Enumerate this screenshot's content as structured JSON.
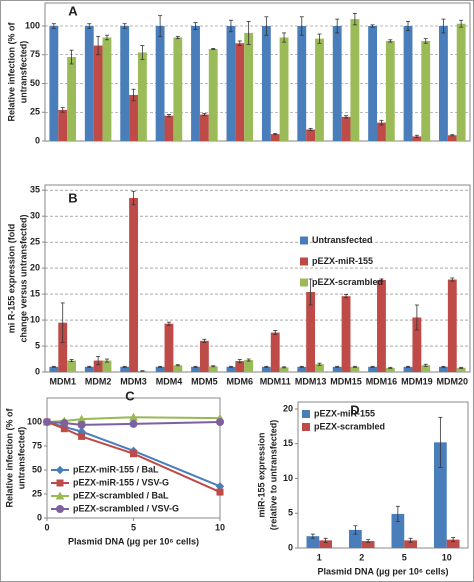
{
  "chart_data": [
    {
      "type": "bar",
      "label": "A",
      "ylabel": [
        "Relative infection (% of",
        "untransfected)"
      ],
      "categories": [
        null,
        null,
        null,
        null,
        null,
        null,
        null,
        null,
        null,
        null,
        null,
        null
      ],
      "series": [
        {
          "name": "Untransfected",
          "color": "#4a7ebb",
          "values": [
            100,
            100,
            100,
            100,
            100,
            100,
            100,
            100,
            100,
            100,
            100,
            100
          ],
          "errors": [
            2,
            2,
            2,
            9,
            3,
            5,
            8,
            8,
            6,
            1,
            4,
            6
          ]
        },
        {
          "name": "pEZX-miR-155",
          "color": "#be4b48",
          "values": [
            27,
            83,
            40,
            22,
            23,
            85,
            6,
            10,
            21,
            16,
            4,
            5
          ],
          "errors": [
            2,
            8,
            5,
            1,
            1,
            2,
            0.5,
            1,
            1,
            2,
            1,
            0.5
          ]
        },
        {
          "name": "pEZX-scrambled",
          "color": "#9bbb59",
          "values": [
            73,
            90,
            77,
            90,
            80,
            94,
            90,
            89,
            106,
            87,
            87,
            102
          ],
          "errors": [
            6,
            2,
            6,
            1,
            0.5,
            10,
            4,
            4,
            5,
            1,
            2,
            3
          ]
        }
      ],
      "ylim": [
        0,
        120
      ],
      "yticks": [
        0,
        25,
        50,
        75,
        100
      ],
      "grid": true
    },
    {
      "type": "bar",
      "label": "B",
      "ylabel": [
        "mi R-155 expression (fold",
        "change versus untransfected)"
      ],
      "categories": [
        "MDM1",
        "MDM2",
        "MDM3",
        "MDM4",
        "MDM5",
        "MDM6",
        "MDM11",
        "MDM13",
        "MDM15",
        "MDM16",
        "MDM19",
        "MDM20"
      ],
      "series": [
        {
          "name": "Untransfected",
          "color": "#4a7ebb",
          "values": [
            1,
            1,
            1,
            1,
            1,
            1,
            1,
            1,
            1,
            1,
            1,
            1
          ],
          "errors": [
            0.1,
            0.1,
            0.1,
            0.1,
            0.1,
            0.1,
            0.1,
            0.1,
            0.1,
            0.1,
            0.1,
            0.1
          ]
        },
        {
          "name": "pEZX-miR-155",
          "color": "#be4b48",
          "values": [
            9.5,
            2.2,
            33.5,
            9.3,
            6,
            2.1,
            7.6,
            15.4,
            14.6,
            17.7,
            10.5,
            17.8
          ],
          "errors": [
            3.8,
            0.8,
            1.3,
            0.3,
            0.3,
            0.3,
            0.4,
            2.5,
            0.3,
            0.2,
            2.4,
            0.3
          ]
        },
        {
          "name": "pEZX-scrambled",
          "color": "#9bbb59",
          "values": [
            2.2,
            2.2,
            0.2,
            1.3,
            1.1,
            2.3,
            0.9,
            1.5,
            1.0,
            0.8,
            1.3,
            0.8
          ],
          "errors": [
            0.2,
            0.3,
            0.05,
            0.1,
            0.1,
            0.2,
            0.1,
            0.2,
            0.1,
            0.1,
            0.2,
            0.1
          ]
        }
      ],
      "ylim": [
        0,
        36
      ],
      "yticks": [
        0,
        5,
        10,
        15,
        20,
        25,
        30,
        35
      ],
      "grid": true,
      "legend": "center right"
    },
    {
      "type": "line",
      "label": "C",
      "ylabel": [
        "Relative infection (% of",
        "untransfected)"
      ],
      "xlabel": "Plasmid DNA (µg per 10⁶ cells)",
      "x": [
        0,
        1,
        2,
        5,
        10
      ],
      "series": [
        {
          "name": "pEZX-miR-155 / BaL",
          "color": "#4a7ebb",
          "marker": "diamond",
          "values": [
            100,
            95,
            90,
            70,
            33
          ]
        },
        {
          "name": "pEZX-miR-155 / VSV-G",
          "color": "#be4b48",
          "marker": "square",
          "values": [
            100,
            93,
            85,
            67,
            27
          ]
        },
        {
          "name": "pEZX-scrambled / BaL",
          "color": "#98b954",
          "marker": "triangle",
          "values": [
            100,
            101,
            103,
            105,
            104
          ]
        },
        {
          "name": "pEZX-scrambled / VSV-G",
          "color": "#7d60a0",
          "marker": "circle",
          "values": [
            100,
            99,
            97,
            98,
            100
          ]
        }
      ],
      "xlim": [
        0,
        10
      ],
      "xticks": [
        0,
        5,
        10
      ],
      "ylim": [
        0,
        125
      ],
      "yticks": [
        0,
        25,
        50,
        75,
        100
      ],
      "grid": false,
      "legend": "lower left"
    },
    {
      "type": "bar",
      "label": "D",
      "ylabel": [
        "miR-155 expression",
        "(relative to untransfected)"
      ],
      "xlabel": "Plasmid DNA (µg per 10⁶ cells)",
      "categories": [
        "1",
        "2",
        "5",
        "10"
      ],
      "series": [
        {
          "name": "pEZX-miR-155",
          "color": "#4a7ebb",
          "values": [
            1.7,
            2.6,
            4.9,
            15.2
          ],
          "errors": [
            0.3,
            0.6,
            1.1,
            3.6
          ]
        },
        {
          "name": "pEZX-scrambled",
          "color": "#be4b48",
          "values": [
            1.1,
            1.0,
            1.1,
            1.2
          ],
          "errors": [
            0.3,
            0.2,
            0.3,
            0.3
          ]
        }
      ],
      "ylim": [
        0,
        21
      ],
      "yticks": [
        0,
        5,
        10,
        15,
        20
      ],
      "grid": false,
      "legend": "upper left"
    }
  ]
}
